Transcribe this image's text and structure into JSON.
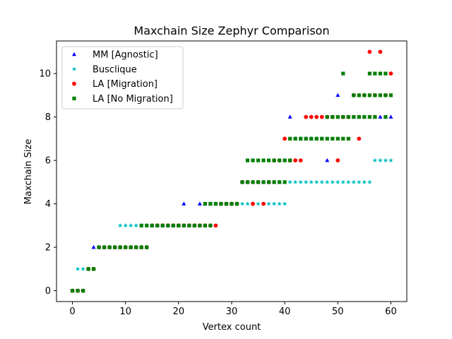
{
  "chart_data": {
    "type": "scatter",
    "title": "Maxchain Size Zephyr Comparison",
    "xlabel": "Vertex count",
    "ylabel": "Maxchain Size",
    "xlim": [
      -3,
      63
    ],
    "ylim": [
      -0.5,
      11.5
    ],
    "xticks": [
      0,
      10,
      20,
      30,
      40,
      50,
      60
    ],
    "yticks": [
      0,
      2,
      4,
      6,
      8,
      10
    ],
    "grid": false,
    "legend_position": "top-left",
    "series": [
      {
        "name": "MM [Agnostic]",
        "marker": "triangle",
        "color": "#0000ff",
        "points": [
          [
            0,
            0
          ],
          [
            1,
            0
          ],
          [
            2,
            0
          ],
          [
            3,
            1
          ],
          [
            4,
            2
          ],
          [
            5,
            2
          ],
          [
            6,
            2
          ],
          [
            7,
            2
          ],
          [
            8,
            2
          ],
          [
            9,
            2
          ],
          [
            10,
            2
          ],
          [
            11,
            2
          ],
          [
            12,
            2
          ],
          [
            13,
            2
          ],
          [
            14,
            2
          ],
          [
            15,
            3
          ],
          [
            16,
            3
          ],
          [
            17,
            3
          ],
          [
            18,
            3
          ],
          [
            19,
            3
          ],
          [
            20,
            3
          ],
          [
            21,
            4
          ],
          [
            22,
            3
          ],
          [
            23,
            3
          ],
          [
            24,
            4
          ],
          [
            25,
            4
          ],
          [
            26,
            4
          ],
          [
            27,
            4
          ],
          [
            28,
            4
          ],
          [
            29,
            4
          ],
          [
            30,
            4
          ],
          [
            31,
            4
          ],
          [
            32,
            5
          ],
          [
            33,
            5
          ],
          [
            34,
            5
          ],
          [
            35,
            5
          ],
          [
            36,
            5
          ],
          [
            37,
            5
          ],
          [
            38,
            5
          ],
          [
            39,
            5
          ],
          [
            40,
            6
          ],
          [
            41,
            8
          ],
          [
            42,
            7
          ],
          [
            43,
            7
          ],
          [
            44,
            7
          ],
          [
            45,
            7
          ],
          [
            46,
            7
          ],
          [
            47,
            7
          ],
          [
            48,
            6
          ],
          [
            49,
            8
          ],
          [
            50,
            9
          ],
          [
            51,
            8
          ],
          [
            52,
            8
          ],
          [
            53,
            8
          ],
          [
            54,
            8
          ],
          [
            55,
            8
          ],
          [
            56,
            8
          ],
          [
            57,
            8
          ],
          [
            58,
            8
          ],
          [
            59,
            8
          ],
          [
            60,
            8
          ]
        ]
      },
      {
        "name": "Busclique",
        "marker": "star",
        "color": "#00bfbf",
        "points": [
          [
            0,
            0
          ],
          [
            1,
            1
          ],
          [
            2,
            1
          ],
          [
            3,
            1
          ],
          [
            4,
            1
          ],
          [
            5,
            2
          ],
          [
            6,
            2
          ],
          [
            7,
            2
          ],
          [
            8,
            2
          ],
          [
            9,
            3
          ],
          [
            10,
            3
          ],
          [
            11,
            3
          ],
          [
            12,
            3
          ],
          [
            13,
            3
          ],
          [
            14,
            3
          ],
          [
            15,
            3
          ],
          [
            16,
            3
          ],
          [
            17,
            3
          ],
          [
            18,
            3
          ],
          [
            19,
            3
          ],
          [
            20,
            3
          ],
          [
            21,
            3
          ],
          [
            22,
            3
          ],
          [
            23,
            3
          ],
          [
            24,
            3
          ],
          [
            25,
            4
          ],
          [
            26,
            4
          ],
          [
            27,
            4
          ],
          [
            28,
            4
          ],
          [
            29,
            4
          ],
          [
            30,
            4
          ],
          [
            31,
            4
          ],
          [
            32,
            4
          ],
          [
            33,
            4
          ],
          [
            34,
            4
          ],
          [
            35,
            4
          ],
          [
            36,
            4
          ],
          [
            37,
            4
          ],
          [
            38,
            4
          ],
          [
            39,
            4
          ],
          [
            40,
            4
          ],
          [
            41,
            5
          ],
          [
            42,
            5
          ],
          [
            43,
            5
          ],
          [
            44,
            5
          ],
          [
            45,
            5
          ],
          [
            46,
            5
          ],
          [
            47,
            5
          ],
          [
            48,
            5
          ],
          [
            49,
            5
          ],
          [
            50,
            5
          ],
          [
            51,
            5
          ],
          [
            52,
            5
          ],
          [
            53,
            5
          ],
          [
            54,
            5
          ],
          [
            55,
            5
          ],
          [
            56,
            5
          ],
          [
            57,
            6
          ],
          [
            58,
            6
          ],
          [
            59,
            6
          ],
          [
            60,
            6
          ]
        ]
      },
      {
        "name": "LA [Migration]",
        "marker": "circle",
        "color": "#ff0000",
        "points": [
          [
            0,
            0
          ],
          [
            1,
            0
          ],
          [
            2,
            0
          ],
          [
            3,
            1
          ],
          [
            4,
            1
          ],
          [
            5,
            2
          ],
          [
            6,
            2
          ],
          [
            7,
            2
          ],
          [
            8,
            2
          ],
          [
            9,
            2
          ],
          [
            10,
            2
          ],
          [
            11,
            2
          ],
          [
            12,
            2
          ],
          [
            13,
            2
          ],
          [
            14,
            2
          ],
          [
            15,
            3
          ],
          [
            16,
            3
          ],
          [
            17,
            3
          ],
          [
            18,
            3
          ],
          [
            19,
            3
          ],
          [
            20,
            3
          ],
          [
            21,
            3
          ],
          [
            22,
            3
          ],
          [
            23,
            3
          ],
          [
            24,
            3
          ],
          [
            25,
            3
          ],
          [
            26,
            3
          ],
          [
            27,
            3
          ],
          [
            28,
            4
          ],
          [
            29,
            4
          ],
          [
            30,
            4
          ],
          [
            31,
            4
          ],
          [
            32,
            5
          ],
          [
            33,
            5
          ],
          [
            34,
            4
          ],
          [
            35,
            5
          ],
          [
            36,
            4
          ],
          [
            37,
            5
          ],
          [
            38,
            6
          ],
          [
            39,
            6
          ],
          [
            40,
            7
          ],
          [
            41,
            6
          ],
          [
            42,
            6
          ],
          [
            43,
            6
          ],
          [
            44,
            8
          ],
          [
            45,
            8
          ],
          [
            46,
            8
          ],
          [
            47,
            8
          ],
          [
            48,
            8
          ],
          [
            49,
            8
          ],
          [
            50,
            6
          ],
          [
            51,
            8
          ],
          [
            52,
            8
          ],
          [
            53,
            9
          ],
          [
            54,
            7
          ],
          [
            55,
            9
          ],
          [
            56,
            11
          ],
          [
            57,
            9
          ],
          [
            58,
            11
          ],
          [
            59,
            9
          ],
          [
            60,
            10
          ]
        ]
      },
      {
        "name": "LA [No Migration]",
        "marker": "square",
        "color": "#007f00",
        "points": [
          [
            0,
            0
          ],
          [
            1,
            0
          ],
          [
            2,
            0
          ],
          [
            3,
            1
          ],
          [
            4,
            1
          ],
          [
            5,
            2
          ],
          [
            6,
            2
          ],
          [
            7,
            2
          ],
          [
            8,
            2
          ],
          [
            9,
            2
          ],
          [
            10,
            2
          ],
          [
            11,
            2
          ],
          [
            12,
            2
          ],
          [
            13,
            2
          ],
          [
            14,
            2
          ],
          [
            13,
            3
          ],
          [
            14,
            3
          ],
          [
            15,
            3
          ],
          [
            16,
            3
          ],
          [
            17,
            3
          ],
          [
            18,
            3
          ],
          [
            19,
            3
          ],
          [
            20,
            3
          ],
          [
            21,
            3
          ],
          [
            22,
            3
          ],
          [
            23,
            3
          ],
          [
            24,
            3
          ],
          [
            25,
            3
          ],
          [
            26,
            3
          ],
          [
            25,
            4
          ],
          [
            26,
            4
          ],
          [
            27,
            4
          ],
          [
            28,
            4
          ],
          [
            29,
            4
          ],
          [
            30,
            4
          ],
          [
            31,
            4
          ],
          [
            32,
            5
          ],
          [
            33,
            5
          ],
          [
            34,
            5
          ],
          [
            35,
            5
          ],
          [
            36,
            5
          ],
          [
            37,
            5
          ],
          [
            38,
            5
          ],
          [
            39,
            5
          ],
          [
            40,
            5
          ],
          [
            33,
            6
          ],
          [
            34,
            6
          ],
          [
            35,
            6
          ],
          [
            36,
            6
          ],
          [
            37,
            6
          ],
          [
            38,
            6
          ],
          [
            39,
            6
          ],
          [
            40,
            6
          ],
          [
            41,
            6
          ],
          [
            41,
            7
          ],
          [
            42,
            7
          ],
          [
            43,
            7
          ],
          [
            44,
            7
          ],
          [
            45,
            7
          ],
          [
            46,
            7
          ],
          [
            47,
            7
          ],
          [
            48,
            7
          ],
          [
            49,
            7
          ],
          [
            50,
            7
          ],
          [
            51,
            7
          ],
          [
            52,
            7
          ],
          [
            48,
            8
          ],
          [
            49,
            8
          ],
          [
            50,
            8
          ],
          [
            51,
            8
          ],
          [
            52,
            8
          ],
          [
            53,
            8
          ],
          [
            54,
            8
          ],
          [
            55,
            8
          ],
          [
            56,
            8
          ],
          [
            57,
            8
          ],
          [
            59,
            8
          ],
          [
            53,
            9
          ],
          [
            54,
            9
          ],
          [
            55,
            9
          ],
          [
            56,
            9
          ],
          [
            57,
            9
          ],
          [
            58,
            9
          ],
          [
            59,
            9
          ],
          [
            60,
            9
          ],
          [
            51,
            10
          ],
          [
            56,
            10
          ],
          [
            57,
            10
          ],
          [
            58,
            10
          ],
          [
            59,
            10
          ]
        ]
      }
    ]
  }
}
